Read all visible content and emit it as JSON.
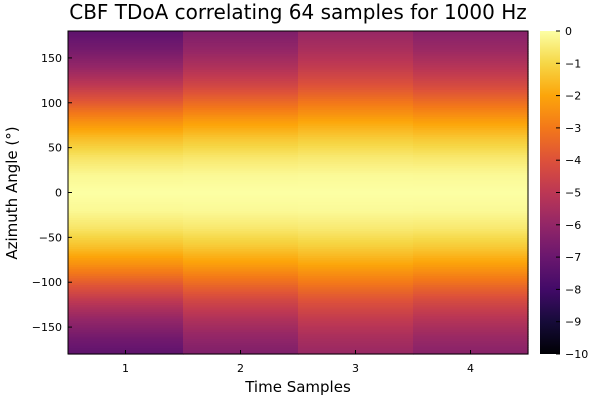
{
  "chart_data": {
    "type": "heatmap",
    "title": "CBF TDoA correlating 64 samples for 1000 Hz",
    "xlabel": "Time Samples",
    "ylabel": "Azimuth Angle (°)",
    "x_categories": [
      "1",
      "2",
      "3",
      "4"
    ],
    "y_range": [
      -180,
      180
    ],
    "y_ticks": [
      150,
      100,
      50,
      0,
      -50,
      -100,
      -150
    ],
    "y_tick_labels": [
      "150",
      "100",
      "50",
      "0",
      "−50",
      "−100",
      "−150"
    ],
    "color_range": [
      -10,
      0
    ],
    "colorbar_ticks": [
      0,
      -1,
      -2,
      -3,
      -4,
      -5,
      -6,
      -7,
      -8,
      -9,
      -10
    ],
    "colorbar_tick_labels": [
      "0",
      "−1",
      "−2",
      "−3",
      "−4",
      "−5",
      "−6",
      "−7",
      "−8",
      "−9",
      "−10"
    ],
    "colormap": "inferno",
    "grid": false,
    "azimuth_profile": [
      {
        "angle": -180,
        "value": -6.5
      },
      {
        "angle": -160,
        "value": -6.0
      },
      {
        "angle": -140,
        "value": -5.3
      },
      {
        "angle": -120,
        "value": -4.4
      },
      {
        "angle": -100,
        "value": -3.3
      },
      {
        "angle": -80,
        "value": -2.2
      },
      {
        "angle": -60,
        "value": -1.3
      },
      {
        "angle": -40,
        "value": -0.6
      },
      {
        "angle": -20,
        "value": -0.15
      },
      {
        "angle": 0,
        "value": 0
      },
      {
        "angle": 20,
        "value": -0.15
      },
      {
        "angle": 40,
        "value": -0.6
      },
      {
        "angle": 60,
        "value": -1.3
      },
      {
        "angle": 80,
        "value": -2.2
      },
      {
        "angle": 100,
        "value": -3.3
      },
      {
        "angle": 120,
        "value": -4.4
      },
      {
        "angle": 140,
        "value": -5.3
      },
      {
        "angle": 160,
        "value": -6.0
      },
      {
        "angle": 180,
        "value": -6.5
      }
    ],
    "sample_min_values": [
      {
        "sample": "1",
        "min": -7.3
      },
      {
        "sample": "2",
        "min": -6.5
      },
      {
        "sample": "3",
        "min": -5.9
      },
      {
        "sample": "4",
        "min": -6.3
      }
    ]
  }
}
